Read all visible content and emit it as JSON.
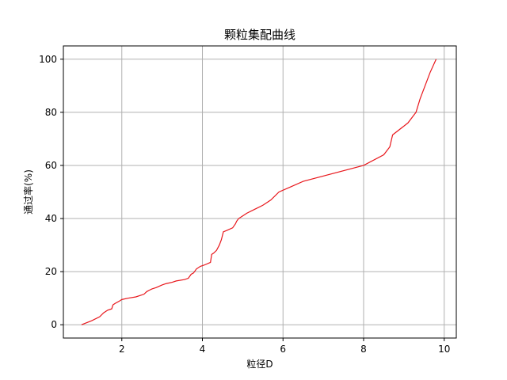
{
  "chart_data": {
    "type": "line",
    "title": "颗粒集配曲线",
    "xlabel": "粒径D",
    "ylabel": "通过率(%)",
    "xlim": [
      0.55,
      10.3
    ],
    "ylim": [
      -5,
      105
    ],
    "xticks": [
      2,
      4,
      6,
      8,
      10
    ],
    "yticks": [
      0,
      20,
      40,
      60,
      80,
      100
    ],
    "grid": true,
    "line_color": "#e8161b",
    "series": [
      {
        "x": [
          1.0,
          1.25,
          1.45,
          1.55,
          1.65,
          1.75,
          1.78,
          1.83,
          1.95,
          2.0,
          2.15,
          2.35,
          2.55,
          2.62,
          2.68,
          2.75,
          2.85,
          3.0,
          3.1,
          3.25,
          3.35,
          3.55,
          3.65,
          3.72,
          3.78,
          3.85,
          3.95,
          4.05,
          4.2,
          4.23,
          4.28,
          4.35,
          4.42,
          4.47,
          4.52,
          4.6,
          4.75,
          4.82,
          4.85,
          4.9,
          5.0,
          5.1,
          5.3,
          5.5,
          5.7,
          5.9,
          6.2,
          6.5,
          8.0,
          8.5,
          8.65,
          8.72,
          9.1,
          9.3,
          9.4,
          9.65,
          9.8
        ],
        "y": [
          0,
          1.5,
          3,
          4.5,
          5.5,
          6,
          7.5,
          8,
          9,
          9.5,
          10,
          10.5,
          11.5,
          12.5,
          13,
          13.5,
          14,
          15,
          15.5,
          16,
          16.5,
          17,
          17.5,
          19,
          19.5,
          21,
          22,
          22.5,
          23.5,
          26.5,
          27,
          28,
          30,
          32,
          35,
          35.5,
          36.5,
          38,
          39,
          40,
          41,
          42,
          43.5,
          45,
          47,
          50,
          52,
          54,
          60,
          64,
          67,
          71.5,
          76,
          80,
          85,
          95,
          100
        ]
      }
    ]
  }
}
